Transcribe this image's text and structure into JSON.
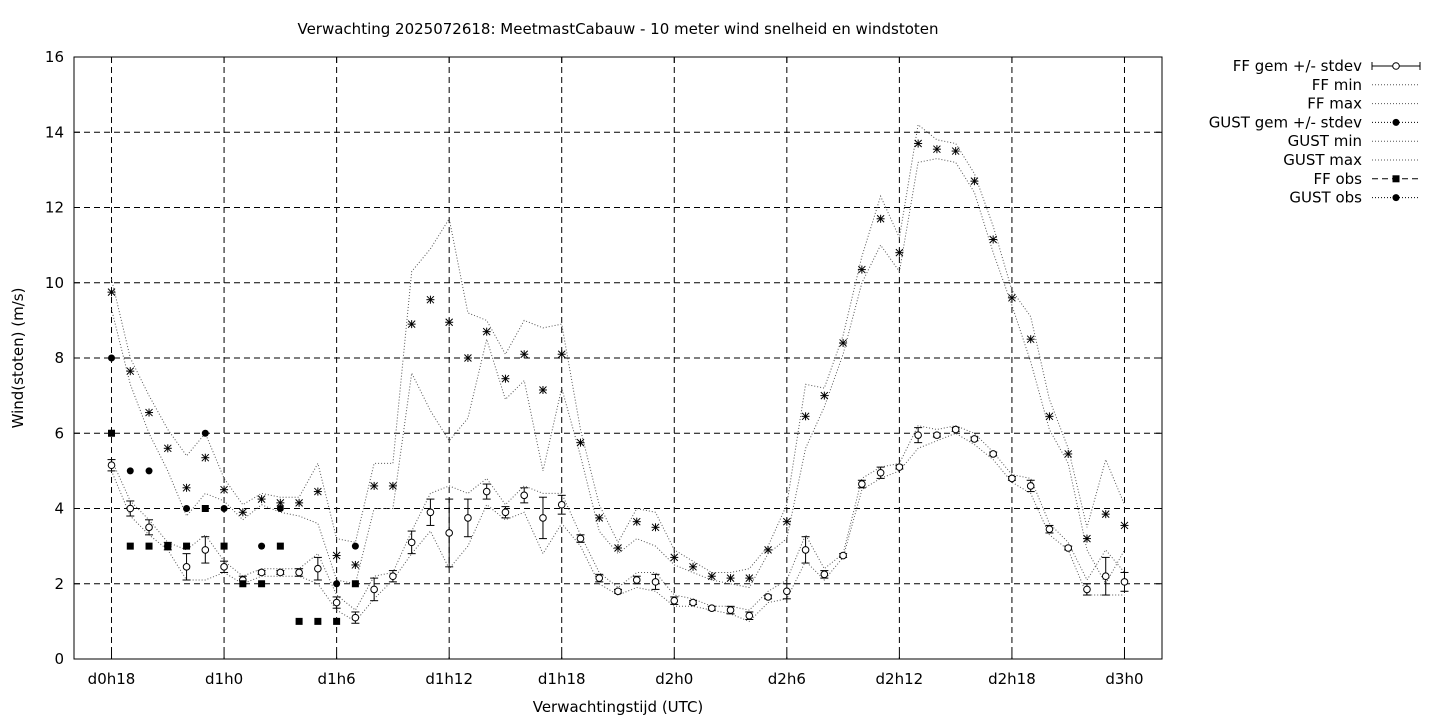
{
  "chart_data": {
    "type": "line",
    "title": "Verwachting 2025072618: MeetmastCabauw - 10 meter wind snelheid en windstoten",
    "xlabel": "Verwachtingstijd (UTC)",
    "ylabel": "Wind(stoten) (m/s)",
    "ylim": [
      0,
      16
    ],
    "y_ticks": [
      0,
      2,
      4,
      6,
      8,
      10,
      12,
      14,
      16
    ],
    "x_range_hours": [
      16,
      74
    ],
    "x_ticks": [
      {
        "label": "d0h18",
        "h": 18
      },
      {
        "label": "d1h0",
        "h": 24
      },
      {
        "label": "d1h6",
        "h": 30
      },
      {
        "label": "d1h12",
        "h": 36
      },
      {
        "label": "d1h18",
        "h": 42
      },
      {
        "label": "d2h0",
        "h": 48
      },
      {
        "label": "d2h6",
        "h": 54
      },
      {
        "label": "d2h12",
        "h": 60
      },
      {
        "label": "d2h18",
        "h": 66
      },
      {
        "label": "d3h0",
        "h": 72
      }
    ],
    "grid": true,
    "legend_position": "outside-right",
    "series": [
      {
        "name": "FF gem +/- stdev",
        "marker": "circle",
        "x": [
          18,
          19,
          20,
          21,
          22,
          23,
          24,
          25,
          26,
          27,
          28,
          29,
          30,
          31,
          32,
          33,
          34,
          35,
          36,
          37,
          38,
          39,
          40,
          41,
          42,
          43,
          44,
          45,
          46,
          47,
          48,
          49,
          50,
          51,
          52,
          53,
          54,
          55,
          56,
          57,
          58,
          59,
          60,
          61,
          62,
          63,
          64,
          65,
          66,
          67,
          68,
          69,
          70,
          71,
          72
        ],
        "y": [
          5.15,
          4.0,
          3.5,
          3.0,
          2.45,
          2.9,
          2.45,
          2.1,
          2.3,
          2.3,
          2.3,
          2.4,
          1.5,
          1.1,
          1.85,
          2.2,
          3.1,
          3.9,
          3.35,
          3.75,
          4.45,
          3.9,
          4.35,
          3.75,
          4.1,
          3.2,
          2.15,
          1.8,
          2.1,
          2.05,
          1.55,
          1.5,
          1.35,
          1.3,
          1.15,
          1.65,
          1.8,
          2.9,
          2.25,
          2.75,
          4.65,
          4.95,
          5.1,
          5.95,
          5.95,
          6.1,
          5.85,
          5.45,
          4.8,
          4.6,
          3.45,
          2.95,
          1.85,
          2.2,
          2.05
        ],
        "err": [
          0.15,
          0.2,
          0.2,
          0.1,
          0.35,
          0.35,
          0.15,
          0.1,
          0.05,
          0.05,
          0.1,
          0.3,
          0.15,
          0.15,
          0.3,
          0.15,
          0.3,
          0.35,
          0.9,
          0.5,
          0.2,
          0.15,
          0.2,
          0.55,
          0.25,
          0.1,
          0.1,
          0.05,
          0.1,
          0.2,
          0.1,
          0.05,
          0.05,
          0.1,
          0.1,
          0.05,
          0.2,
          0.35,
          0.1,
          0.05,
          0.1,
          0.15,
          0.05,
          0.2,
          0.05,
          0.05,
          0.05,
          0.05,
          0.05,
          0.15,
          0.1,
          0.05,
          0.15,
          0.5,
          0.25
        ]
      },
      {
        "name": "FF min",
        "style": "dotted",
        "x": [
          18,
          19,
          20,
          21,
          22,
          23,
          24,
          25,
          26,
          27,
          28,
          29,
          30,
          31,
          32,
          33,
          34,
          35,
          36,
          37,
          38,
          39,
          40,
          41,
          42,
          43,
          44,
          45,
          46,
          47,
          48,
          49,
          50,
          51,
          52,
          53,
          54,
          55,
          56,
          57,
          58,
          59,
          60,
          61,
          62,
          63,
          64,
          65,
          66,
          67,
          68,
          69,
          70,
          71,
          72
        ],
        "y": [
          5.0,
          3.8,
          3.3,
          2.9,
          2.1,
          2.1,
          2.3,
          2.0,
          2.2,
          2.2,
          2.2,
          2.0,
          1.3,
          1.0,
          1.6,
          2.1,
          2.8,
          3.4,
          2.4,
          3.0,
          4.1,
          3.7,
          3.9,
          2.8,
          3.6,
          3.0,
          2.0,
          1.7,
          1.9,
          1.8,
          1.4,
          1.4,
          1.3,
          1.2,
          1.0,
          1.5,
          1.6,
          2.6,
          2.1,
          2.7,
          4.5,
          4.8,
          5.0,
          5.6,
          5.8,
          6.0,
          5.7,
          5.3,
          4.7,
          4.4,
          3.3,
          2.9,
          1.7,
          1.7,
          1.7
        ]
      },
      {
        "name": "FF max",
        "style": "dotted",
        "x": [
          18,
          19,
          20,
          21,
          22,
          23,
          24,
          25,
          26,
          27,
          28,
          29,
          30,
          31,
          32,
          33,
          34,
          35,
          36,
          37,
          38,
          39,
          40,
          41,
          42,
          43,
          44,
          45,
          46,
          47,
          48,
          49,
          50,
          51,
          52,
          53,
          54,
          55,
          56,
          57,
          58,
          59,
          60,
          61,
          62,
          63,
          64,
          65,
          66,
          67,
          68,
          69,
          70,
          71,
          72
        ],
        "y": [
          5.3,
          4.2,
          3.7,
          3.1,
          2.9,
          3.3,
          2.6,
          2.2,
          2.4,
          2.4,
          2.4,
          2.8,
          1.7,
          1.3,
          2.2,
          2.3,
          3.4,
          4.4,
          4.6,
          4.4,
          4.8,
          4.1,
          4.6,
          4.4,
          4.4,
          3.3,
          2.3,
          1.9,
          2.3,
          2.3,
          1.7,
          1.6,
          1.4,
          1.4,
          1.3,
          1.8,
          2.1,
          3.3,
          2.4,
          2.8,
          4.8,
          5.1,
          5.2,
          6.2,
          6.1,
          6.2,
          6.0,
          5.5,
          4.9,
          4.8,
          3.6,
          3.1,
          2.1,
          2.9,
          2.3
        ]
      },
      {
        "name": "GUST gem +/- stdev",
        "marker": "star",
        "x": [
          18,
          19,
          20,
          21,
          22,
          23,
          24,
          25,
          26,
          27,
          28,
          29,
          30,
          31,
          32,
          33,
          34,
          35,
          36,
          37,
          38,
          39,
          40,
          41,
          42,
          43,
          44,
          45,
          46,
          47,
          48,
          49,
          50,
          51,
          52,
          53,
          54,
          55,
          56,
          57,
          58,
          59,
          60,
          61,
          62,
          63,
          64,
          65,
          66,
          67,
          68,
          69,
          70,
          71,
          72
        ],
        "y": [
          9.75,
          7.65,
          6.55,
          5.6,
          4.55,
          5.35,
          4.5,
          3.9,
          4.25,
          4.15,
          4.15,
          4.45,
          2.75,
          2.5,
          4.6,
          4.6,
          8.9,
          9.55,
          8.95,
          8.0,
          8.7,
          7.45,
          8.1,
          7.15,
          8.1,
          5.75,
          3.75,
          2.95,
          3.65,
          3.5,
          2.7,
          2.45,
          2.2,
          2.15,
          2.15,
          2.9,
          3.65,
          6.45,
          7.0,
          8.4,
          10.35,
          11.7,
          10.8,
          13.7,
          13.55,
          13.5,
          12.7,
          11.15,
          9.6,
          8.5,
          6.45,
          5.45,
          3.2,
          3.85,
          3.55
        ]
      },
      {
        "name": "GUST min",
        "style": "dotted",
        "x": [
          18,
          19,
          20,
          21,
          22,
          23,
          24,
          25,
          26,
          27,
          28,
          29,
          30,
          31,
          32,
          33,
          34,
          35,
          36,
          37,
          38,
          39,
          40,
          41,
          42,
          43,
          44,
          45,
          46,
          47,
          48,
          49,
          50,
          51,
          52,
          53,
          54,
          55,
          56,
          57,
          58,
          59,
          60,
          61,
          62,
          63,
          64,
          65,
          66,
          67,
          68,
          69,
          70,
          71,
          72
        ],
        "y": [
          9.3,
          7.3,
          6.0,
          5.0,
          3.8,
          4.4,
          4.2,
          3.7,
          4.1,
          3.9,
          3.8,
          3.6,
          2.1,
          2.0,
          4.0,
          4.0,
          7.6,
          6.6,
          5.8,
          6.4,
          8.5,
          6.9,
          7.4,
          5.0,
          7.2,
          5.4,
          3.4,
          2.8,
          3.2,
          3.0,
          2.5,
          2.3,
          2.1,
          2.0,
          1.9,
          2.8,
          3.2,
          5.6,
          6.7,
          8.1,
          10.0,
          11.0,
          10.3,
          13.2,
          13.3,
          13.2,
          12.4,
          10.8,
          9.4,
          7.9,
          6.1,
          5.2,
          2.9,
          2.0,
          2.9
        ]
      },
      {
        "name": "GUST max",
        "style": "dotted",
        "x": [
          18,
          19,
          20,
          21,
          22,
          23,
          24,
          25,
          26,
          27,
          28,
          29,
          30,
          31,
          32,
          33,
          34,
          35,
          36,
          37,
          38,
          39,
          40,
          41,
          42,
          43,
          44,
          45,
          46,
          47,
          48,
          49,
          50,
          51,
          52,
          53,
          54,
          55,
          56,
          57,
          58,
          59,
          60,
          61,
          62,
          63,
          64,
          65,
          66,
          67,
          68,
          69,
          70,
          71,
          72
        ],
        "y": [
          10.1,
          8.0,
          7.0,
          6.1,
          5.4,
          6.0,
          4.8,
          4.1,
          4.4,
          4.3,
          4.3,
          5.2,
          3.2,
          3.1,
          5.2,
          5.2,
          10.3,
          10.9,
          11.7,
          9.2,
          9.0,
          8.1,
          9.0,
          8.8,
          8.9,
          6.1,
          4.1,
          3.1,
          4.0,
          3.9,
          2.9,
          2.6,
          2.3,
          2.3,
          2.4,
          3.0,
          4.1,
          7.3,
          7.2,
          8.6,
          10.7,
          12.3,
          11.2,
          14.2,
          13.8,
          13.7,
          12.9,
          11.5,
          9.8,
          9.1,
          6.9,
          5.6,
          3.5,
          5.3,
          4.1
        ]
      },
      {
        "name": "FF obs",
        "marker": "square",
        "x": [
          18,
          19,
          20,
          21,
          22,
          23,
          24,
          25,
          26,
          27,
          28,
          29,
          30,
          31
        ],
        "y": [
          6,
          3,
          3,
          3,
          3,
          4,
          3,
          2,
          2,
          3,
          1,
          1,
          1,
          2
        ]
      },
      {
        "name": "GUST obs",
        "marker": "dot",
        "x": [
          18,
          19,
          20,
          22,
          23,
          24,
          26,
          27,
          30,
          31
        ],
        "y": [
          8,
          5,
          5,
          4,
          6,
          4,
          3,
          4,
          2,
          3
        ]
      }
    ]
  }
}
